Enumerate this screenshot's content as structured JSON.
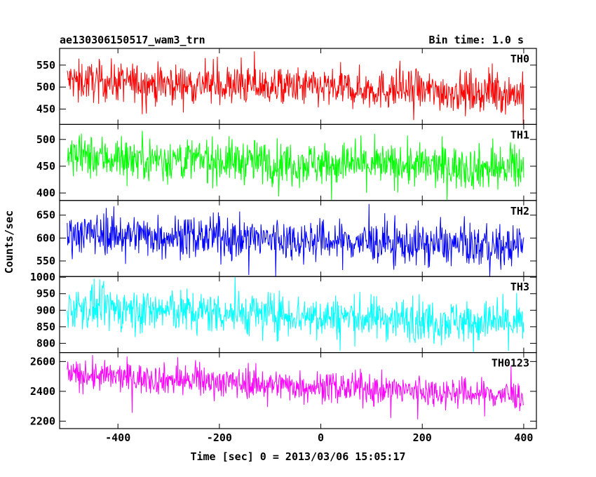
{
  "header": {
    "title": "ae130306150517_wam3_trn",
    "bin_time": "Bin time: 1.0 s"
  },
  "chart_data": {
    "type": "line",
    "xlabel": "Time [sec] 0 = 2013/03/06 15:05:17",
    "ylabel": "Counts/sec",
    "xlim": [
      -515,
      425
    ],
    "x_ticks": [
      "-400",
      "-200",
      "0",
      "200",
      "400"
    ],
    "x_range": [
      -500,
      400
    ],
    "panels": [
      {
        "name": "TH0",
        "color": "#ff0000",
        "ylim": [
          415,
          588
        ],
        "yticks": [
          "450",
          "500",
          "550"
        ],
        "trend": [
          515,
          485
        ],
        "noise": 22,
        "spike": 45
      },
      {
        "name": "TH1",
        "color": "#00ff00",
        "ylim": [
          386,
          528
        ],
        "yticks": [
          "400",
          "450",
          "500"
        ],
        "trend": [
          468,
          445
        ],
        "noise": 20,
        "spike": 38
      },
      {
        "name": "TH2",
        "color": "#0000ff",
        "ylim": [
          516,
          682
        ],
        "yticks": [
          "550",
          "600",
          "650"
        ],
        "trend": [
          612,
          580
        ],
        "noise": 22,
        "spike": 45
      },
      {
        "name": "TH3",
        "color": "#00ffff",
        "ylim": [
          772,
          1002
        ],
        "yticks": [
          "800",
          "850",
          "900",
          "950",
          "1000"
        ],
        "trend": [
          910,
          860
        ],
        "noise": 32,
        "spike": 60
      },
      {
        "name": "TH0123",
        "color": "#ff00ff",
        "ylim": [
          2150,
          2660
        ],
        "yticks": [
          "2200",
          "2400",
          "2600"
        ],
        "trend": [
          2510,
          2370
        ],
        "noise": 50,
        "spike": 110
      }
    ]
  }
}
